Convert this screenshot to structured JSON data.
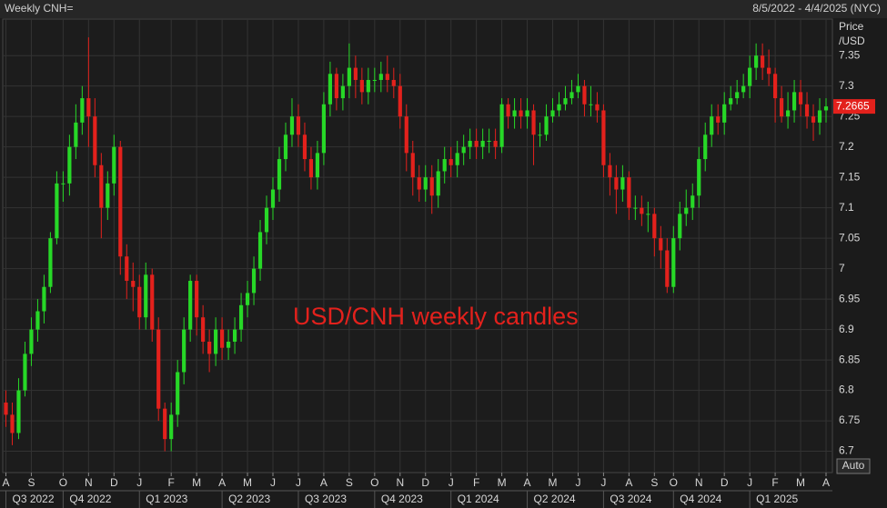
{
  "header": {
    "left": "Weekly CNH=",
    "right": "8/5/2022 - 4/4/2025 (NYC)"
  },
  "chart_data": {
    "type": "candlestick",
    "annotation": "USD/CNH weekly candles",
    "y_label_lines": [
      "Price",
      "/USD"
    ],
    "auto_button": "Auto",
    "up_color": "#27d827",
    "down_color": "#e3211c",
    "grid": true,
    "ylim": [
      6.665,
      7.41
    ],
    "yticks": [
      6.7,
      6.75,
      6.8,
      6.85,
      6.9,
      6.95,
      {
        "value": 7,
        "label": "7"
      },
      7.05,
      7.1,
      7.15,
      7.2,
      7.25,
      7.3,
      7.35
    ],
    "xlim": [
      -0.5,
      130
    ],
    "xticks": [
      {
        "value": 0,
        "label": "A"
      },
      {
        "value": 4,
        "label": "S"
      },
      {
        "value": 9,
        "label": "O"
      },
      {
        "value": 13,
        "label": "N"
      },
      {
        "value": 17,
        "label": "D"
      },
      {
        "value": 21,
        "label": "J"
      },
      {
        "value": 26,
        "label": "F"
      },
      {
        "value": 30,
        "label": "M"
      },
      {
        "value": 34,
        "label": "A"
      },
      {
        "value": 38,
        "label": "M"
      },
      {
        "value": 42,
        "label": "J"
      },
      {
        "value": 46,
        "label": "J"
      },
      {
        "value": 50,
        "label": "A"
      },
      {
        "value": 54,
        "label": "S"
      },
      {
        "value": 58,
        "label": "O"
      },
      {
        "value": 62,
        "label": "N"
      },
      {
        "value": 66,
        "label": "D"
      },
      {
        "value": 70,
        "label": "J"
      },
      {
        "value": 74,
        "label": "F"
      },
      {
        "value": 78,
        "label": "M"
      },
      {
        "value": 82,
        "label": "A"
      },
      {
        "value": 86,
        "label": "M"
      },
      {
        "value": 90,
        "label": "J"
      },
      {
        "value": 94,
        "label": "J"
      },
      {
        "value": 98,
        "label": "A"
      },
      {
        "value": 102,
        "label": "S"
      },
      {
        "value": 105,
        "label": "O"
      },
      {
        "value": 109,
        "label": "N"
      },
      {
        "value": 113,
        "label": "D"
      },
      {
        "value": 117,
        "label": "J"
      },
      {
        "value": 121,
        "label": "F"
      },
      {
        "value": 125,
        "label": "M"
      },
      {
        "value": 129,
        "label": "A"
      }
    ],
    "xticks2": [
      {
        "value": 0,
        "label": "Q3 2022"
      },
      {
        "value": 9,
        "label": "Q4 2022"
      },
      {
        "value": 21,
        "label": "Q1 2023"
      },
      {
        "value": 34,
        "label": "Q2 2023"
      },
      {
        "value": 46,
        "label": "Q3 2023"
      },
      {
        "value": 58,
        "label": "Q4 2023"
      },
      {
        "value": 70,
        "label": "Q1 2024"
      },
      {
        "value": 82,
        "label": "Q2 2024"
      },
      {
        "value": 94,
        "label": "Q3 2024"
      },
      {
        "value": 105,
        "label": "Q4 2024"
      },
      {
        "value": 117,
        "label": "Q1 2025"
      }
    ],
    "open": [
      6.78,
      6.76,
      6.73,
      6.8,
      6.86,
      6.9,
      6.93,
      6.97,
      7.05,
      7.14,
      7.14,
      7.2,
      7.24,
      7.28,
      7.25,
      7.17,
      7.1,
      7.14,
      7.2,
      7.02,
      6.98,
      6.97,
      6.92,
      6.99,
      6.9,
      6.77,
      6.72,
      6.76,
      6.83,
      6.9,
      6.98,
      6.92,
      6.88,
      6.86,
      6.9,
      6.87,
      6.88,
      6.9,
      6.94,
      6.96,
      7.0,
      7.06,
      7.1,
      7.13,
      7.18,
      7.22,
      7.25,
      7.22,
      7.18,
      7.15,
      7.19,
      7.27,
      7.32,
      7.28,
      7.3,
      7.33,
      7.31,
      7.29,
      7.31,
      7.31,
      7.32,
      7.31,
      7.3,
      7.25,
      7.19,
      7.15,
      7.13,
      7.15,
      7.12,
      7.16,
      7.18,
      7.17,
      7.19,
      7.2,
      7.21,
      7.2,
      7.21,
      7.21,
      7.2,
      7.27,
      7.25,
      7.26,
      7.25,
      7.26,
      7.22,
      7.22,
      7.25,
      7.26,
      7.27,
      7.28,
      7.29,
      7.3,
      7.27,
      7.27,
      7.26,
      7.17,
      7.15,
      7.13,
      7.15,
      7.1,
      7.1,
      7.09,
      7.09,
      7.05,
      7.03,
      6.97,
      7.05,
      7.09,
      7.1,
      7.12,
      7.18,
      7.22,
      7.25,
      7.24,
      7.27,
      7.28,
      7.29,
      7.3,
      7.33,
      7.35,
      7.33,
      7.32,
      7.28,
      7.25,
      7.26,
      7.29,
      7.27,
      7.25,
      7.24,
      7.26
    ],
    "high": [
      6.8,
      6.78,
      6.82,
      6.88,
      6.92,
      6.95,
      6.99,
      7.06,
      7.16,
      7.16,
      7.22,
      7.27,
      7.3,
      7.38,
      7.28,
      7.19,
      7.16,
      7.22,
      7.21,
      7.04,
      7.01,
      6.99,
      7.01,
      7.0,
      6.92,
      6.78,
      6.78,
      6.85,
      6.92,
      6.99,
      6.99,
      6.94,
      6.9,
      6.92,
      6.92,
      6.9,
      6.92,
      6.96,
      6.98,
      7.02,
      7.08,
      7.12,
      7.15,
      7.2,
      7.24,
      7.28,
      7.27,
      7.24,
      7.2,
      7.21,
      7.29,
      7.34,
      7.33,
      7.32,
      7.37,
      7.35,
      7.33,
      7.33,
      7.33,
      7.34,
      7.35,
      7.33,
      7.32,
      7.27,
      7.21,
      7.17,
      7.17,
      7.17,
      7.18,
      7.2,
      7.2,
      7.21,
      7.22,
      7.23,
      7.23,
      7.23,
      7.23,
      7.23,
      7.28,
      7.28,
      7.28,
      7.28,
      7.28,
      7.27,
      7.24,
      7.27,
      7.28,
      7.29,
      7.3,
      7.31,
      7.32,
      7.31,
      7.3,
      7.29,
      7.27,
      7.19,
      7.17,
      7.17,
      7.16,
      7.12,
      7.12,
      7.11,
      7.1,
      7.07,
      7.05,
      7.07,
      7.11,
      7.13,
      7.14,
      7.2,
      7.24,
      7.27,
      7.27,
      7.29,
      7.3,
      7.31,
      7.32,
      7.35,
      7.37,
      7.37,
      7.36,
      7.33,
      7.3,
      7.29,
      7.31,
      7.31,
      7.29,
      7.27,
      7.28,
      7.28
    ],
    "low": [
      6.74,
      6.71,
      6.72,
      6.79,
      6.84,
      6.88,
      6.91,
      6.96,
      7.04,
      7.11,
      7.12,
      7.18,
      7.22,
      7.2,
      7.15,
      7.05,
      7.08,
      7.12,
      6.99,
      6.95,
      6.93,
      6.9,
      6.9,
      6.88,
      6.75,
      6.7,
      6.7,
      6.74,
      6.81,
      6.88,
      6.89,
      6.86,
      6.83,
      6.84,
      6.85,
      6.85,
      6.86,
      6.88,
      6.92,
      6.94,
      6.98,
      7.04,
      7.08,
      7.11,
      7.16,
      7.2,
      7.2,
      7.16,
      7.13,
      7.13,
      7.17,
      7.25,
      7.26,
      7.26,
      7.28,
      7.28,
      7.27,
      7.27,
      7.29,
      7.29,
      7.29,
      7.28,
      7.23,
      7.16,
      7.12,
      7.11,
      7.11,
      7.09,
      7.1,
      7.14,
      7.15,
      7.15,
      7.17,
      7.18,
      7.18,
      7.18,
      7.19,
      7.18,
      7.19,
      7.23,
      7.23,
      7.23,
      7.23,
      7.17,
      7.2,
      7.21,
      7.24,
      7.25,
      7.26,
      7.27,
      7.28,
      7.25,
      7.25,
      7.24,
      7.15,
      7.12,
      7.09,
      7.11,
      7.08,
      7.08,
      7.07,
      7.06,
      7.02,
      7.0,
      6.96,
      6.96,
      7.03,
      7.07,
      7.08,
      7.1,
      7.16,
      7.2,
      7.22,
      7.22,
      7.26,
      7.27,
      7.28,
      7.28,
      7.31,
      7.31,
      7.3,
      7.24,
      7.24,
      7.23,
      7.24,
      7.25,
      7.23,
      7.21,
      7.22,
      7.24
    ],
    "close": [
      6.76,
      6.73,
      6.8,
      6.86,
      6.9,
      6.93,
      6.97,
      7.05,
      7.14,
      7.14,
      7.2,
      7.24,
      7.28,
      7.25,
      7.17,
      7.1,
      7.14,
      7.2,
      7.02,
      6.98,
      6.97,
      6.92,
      6.99,
      6.9,
      6.77,
      6.72,
      6.76,
      6.83,
      6.9,
      6.98,
      6.92,
      6.88,
      6.86,
      6.9,
      6.87,
      6.88,
      6.9,
      6.94,
      6.96,
      7.0,
      7.06,
      7.1,
      7.13,
      7.18,
      7.22,
      7.25,
      7.22,
      7.18,
      7.15,
      7.19,
      7.27,
      7.32,
      7.28,
      7.3,
      7.33,
      7.31,
      7.29,
      7.31,
      7.31,
      7.32,
      7.31,
      7.3,
      7.25,
      7.19,
      7.15,
      7.13,
      7.15,
      7.12,
      7.16,
      7.18,
      7.17,
      7.19,
      7.2,
      7.21,
      7.2,
      7.21,
      7.21,
      7.2,
      7.27,
      7.25,
      7.26,
      7.25,
      7.26,
      7.22,
      7.22,
      7.25,
      7.26,
      7.27,
      7.28,
      7.29,
      7.3,
      7.27,
      7.27,
      7.26,
      7.17,
      7.15,
      7.13,
      7.15,
      7.1,
      7.1,
      7.09,
      7.09,
      7.05,
      7.03,
      6.97,
      7.05,
      7.09,
      7.1,
      7.12,
      7.18,
      7.22,
      7.25,
      7.24,
      7.27,
      7.28,
      7.29,
      7.3,
      7.33,
      7.35,
      7.33,
      7.32,
      7.28,
      7.25,
      7.26,
      7.29,
      7.27,
      7.25,
      7.24,
      7.26,
      7.2665
    ]
  }
}
